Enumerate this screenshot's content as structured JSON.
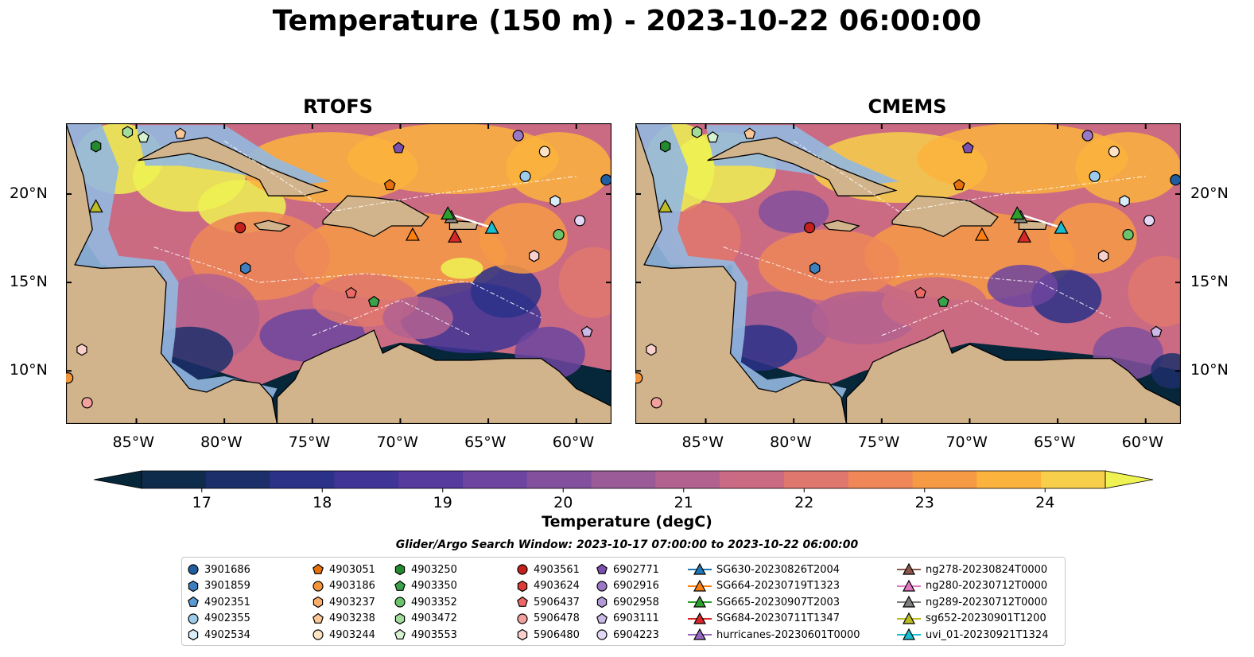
{
  "title": "Temperature (150 m) - 2023-10-22 06:00:00",
  "panels": [
    {
      "id": "rtofs",
      "title": "RTOFS"
    },
    {
      "id": "cmems",
      "title": "CMEMS"
    }
  ],
  "map_axes": {
    "x_ticks": [
      "85°W",
      "80°W",
      "75°W",
      "70°W",
      "65°W",
      "60°W"
    ],
    "y_ticks": [
      "20°N",
      "15°N",
      "10°N"
    ],
    "lon_range": [
      -89,
      -58
    ],
    "lat_range": [
      7,
      24
    ],
    "lon_ticks_deg": [
      -85,
      -80,
      -75,
      -70,
      -65,
      -60
    ],
    "lat_ticks_deg": [
      20,
      15,
      10
    ]
  },
  "colors": {
    "land": "#d2b48c",
    "shelf_water": "#94b8e0",
    "coastline": "#000000"
  },
  "chart_data": {
    "type": "heatmap",
    "variable": "Temperature (degC)",
    "colorbar": {
      "label": "Temperature (degC)",
      "ticks": [
        "17",
        "18",
        "19",
        "20",
        "21",
        "22",
        "23",
        "24"
      ],
      "min": 16.5,
      "max": 24.5,
      "step": 0.5,
      "extend": "both",
      "colors": [
        "#06263a",
        "#0f2b4c",
        "#1d2f6b",
        "#2c3188",
        "#413497",
        "#573a9d",
        "#6d45a0",
        "#83509e",
        "#9b5a98",
        "#b36290",
        "#cb6b83",
        "#e0776f",
        "#ef8758",
        "#f79a45",
        "#fbb33d",
        "#f8cf4a",
        "#eef252"
      ]
    }
  },
  "legend": {
    "title": "Glider/Argo Search Window: 2023-10-17 07:00:00 to 2023-10-22 06:00:00",
    "columns": [
      [
        {
          "label": "3901686",
          "marker": "circle",
          "color": "#1f5fa0"
        },
        {
          "label": "3901859",
          "marker": "hexagon",
          "color": "#3d7fbf"
        },
        {
          "label": "4902351",
          "marker": "pentagon",
          "color": "#5b9bd5"
        },
        {
          "label": "4902355",
          "marker": "circle",
          "color": "#9ccbeb"
        },
        {
          "label": "4902534",
          "marker": "hexagon",
          "color": "#d9ecfa"
        }
      ],
      [
        {
          "label": "4903051",
          "marker": "pentagon",
          "color": "#e6700b"
        },
        {
          "label": "4903186",
          "marker": "circle",
          "color": "#f4953c"
        },
        {
          "label": "4903237",
          "marker": "hexagon",
          "color": "#f9ae6b"
        },
        {
          "label": "4903238",
          "marker": "pentagon",
          "color": "#fcc796"
        },
        {
          "label": "4903244",
          "marker": "circle",
          "color": "#fde2c4"
        }
      ],
      [
        {
          "label": "4903250",
          "marker": "hexagon",
          "color": "#248a2f"
        },
        {
          "label": "4903350",
          "marker": "pentagon",
          "color": "#3aa24a"
        },
        {
          "label": "4903352",
          "marker": "circle",
          "color": "#6ac46b"
        },
        {
          "label": "4903472",
          "marker": "hexagon",
          "color": "#a2dc9b"
        },
        {
          "label": "4903553",
          "marker": "pentagon",
          "color": "#d6f2d0"
        }
      ],
      [
        {
          "label": "4903561",
          "marker": "circle",
          "color": "#c4201c"
        },
        {
          "label": "4903624",
          "marker": "hexagon",
          "color": "#dc3c35"
        },
        {
          "label": "5906437",
          "marker": "pentagon",
          "color": "#ec6a66"
        },
        {
          "label": "5906478",
          "marker": "circle",
          "color": "#f4a09d"
        },
        {
          "label": "5906480",
          "marker": "hexagon",
          "color": "#fad0cd"
        }
      ],
      [
        {
          "label": "6902771",
          "marker": "pentagon",
          "color": "#7b4fae"
        },
        {
          "label": "6902916",
          "marker": "circle",
          "color": "#9b78c6"
        },
        {
          "label": "6902958",
          "marker": "hexagon",
          "color": "#b39ad6"
        },
        {
          "label": "6903111",
          "marker": "pentagon",
          "color": "#cbb9e6"
        },
        {
          "label": "6904223",
          "marker": "circle",
          "color": "#e3d8f5"
        }
      ],
      [
        {
          "label": "SG630-20230826T2004",
          "marker": "triangle-line",
          "color": "#1f77b4"
        },
        {
          "label": "SG664-20230719T1323",
          "marker": "triangle-line",
          "color": "#ff7f0e"
        },
        {
          "label": "SG665-20230907T2003",
          "marker": "triangle-line",
          "color": "#2ca02c"
        },
        {
          "label": "SG684-20230711T1347",
          "marker": "triangle-line",
          "color": "#d62728"
        },
        {
          "label": "hurricanes-20230601T0000",
          "marker": "triangle-line",
          "color": "#9467bd"
        }
      ],
      [
        {
          "label": "ng278-20230824T0000",
          "marker": "triangle-line",
          "color": "#8c564b"
        },
        {
          "label": "ng280-20230712T0000",
          "marker": "triangle-line",
          "color": "#e377c2"
        },
        {
          "label": "ng289-20230712T0000",
          "marker": "triangle-line",
          "color": "#7f7f7f"
        },
        {
          "label": "sg652-20230901T1200",
          "marker": "triangle-line",
          "color": "#bcbd22"
        },
        {
          "label": "uvi_01-20230921T1324",
          "marker": "triangle-line",
          "color": "#17becf"
        }
      ]
    ]
  }
}
